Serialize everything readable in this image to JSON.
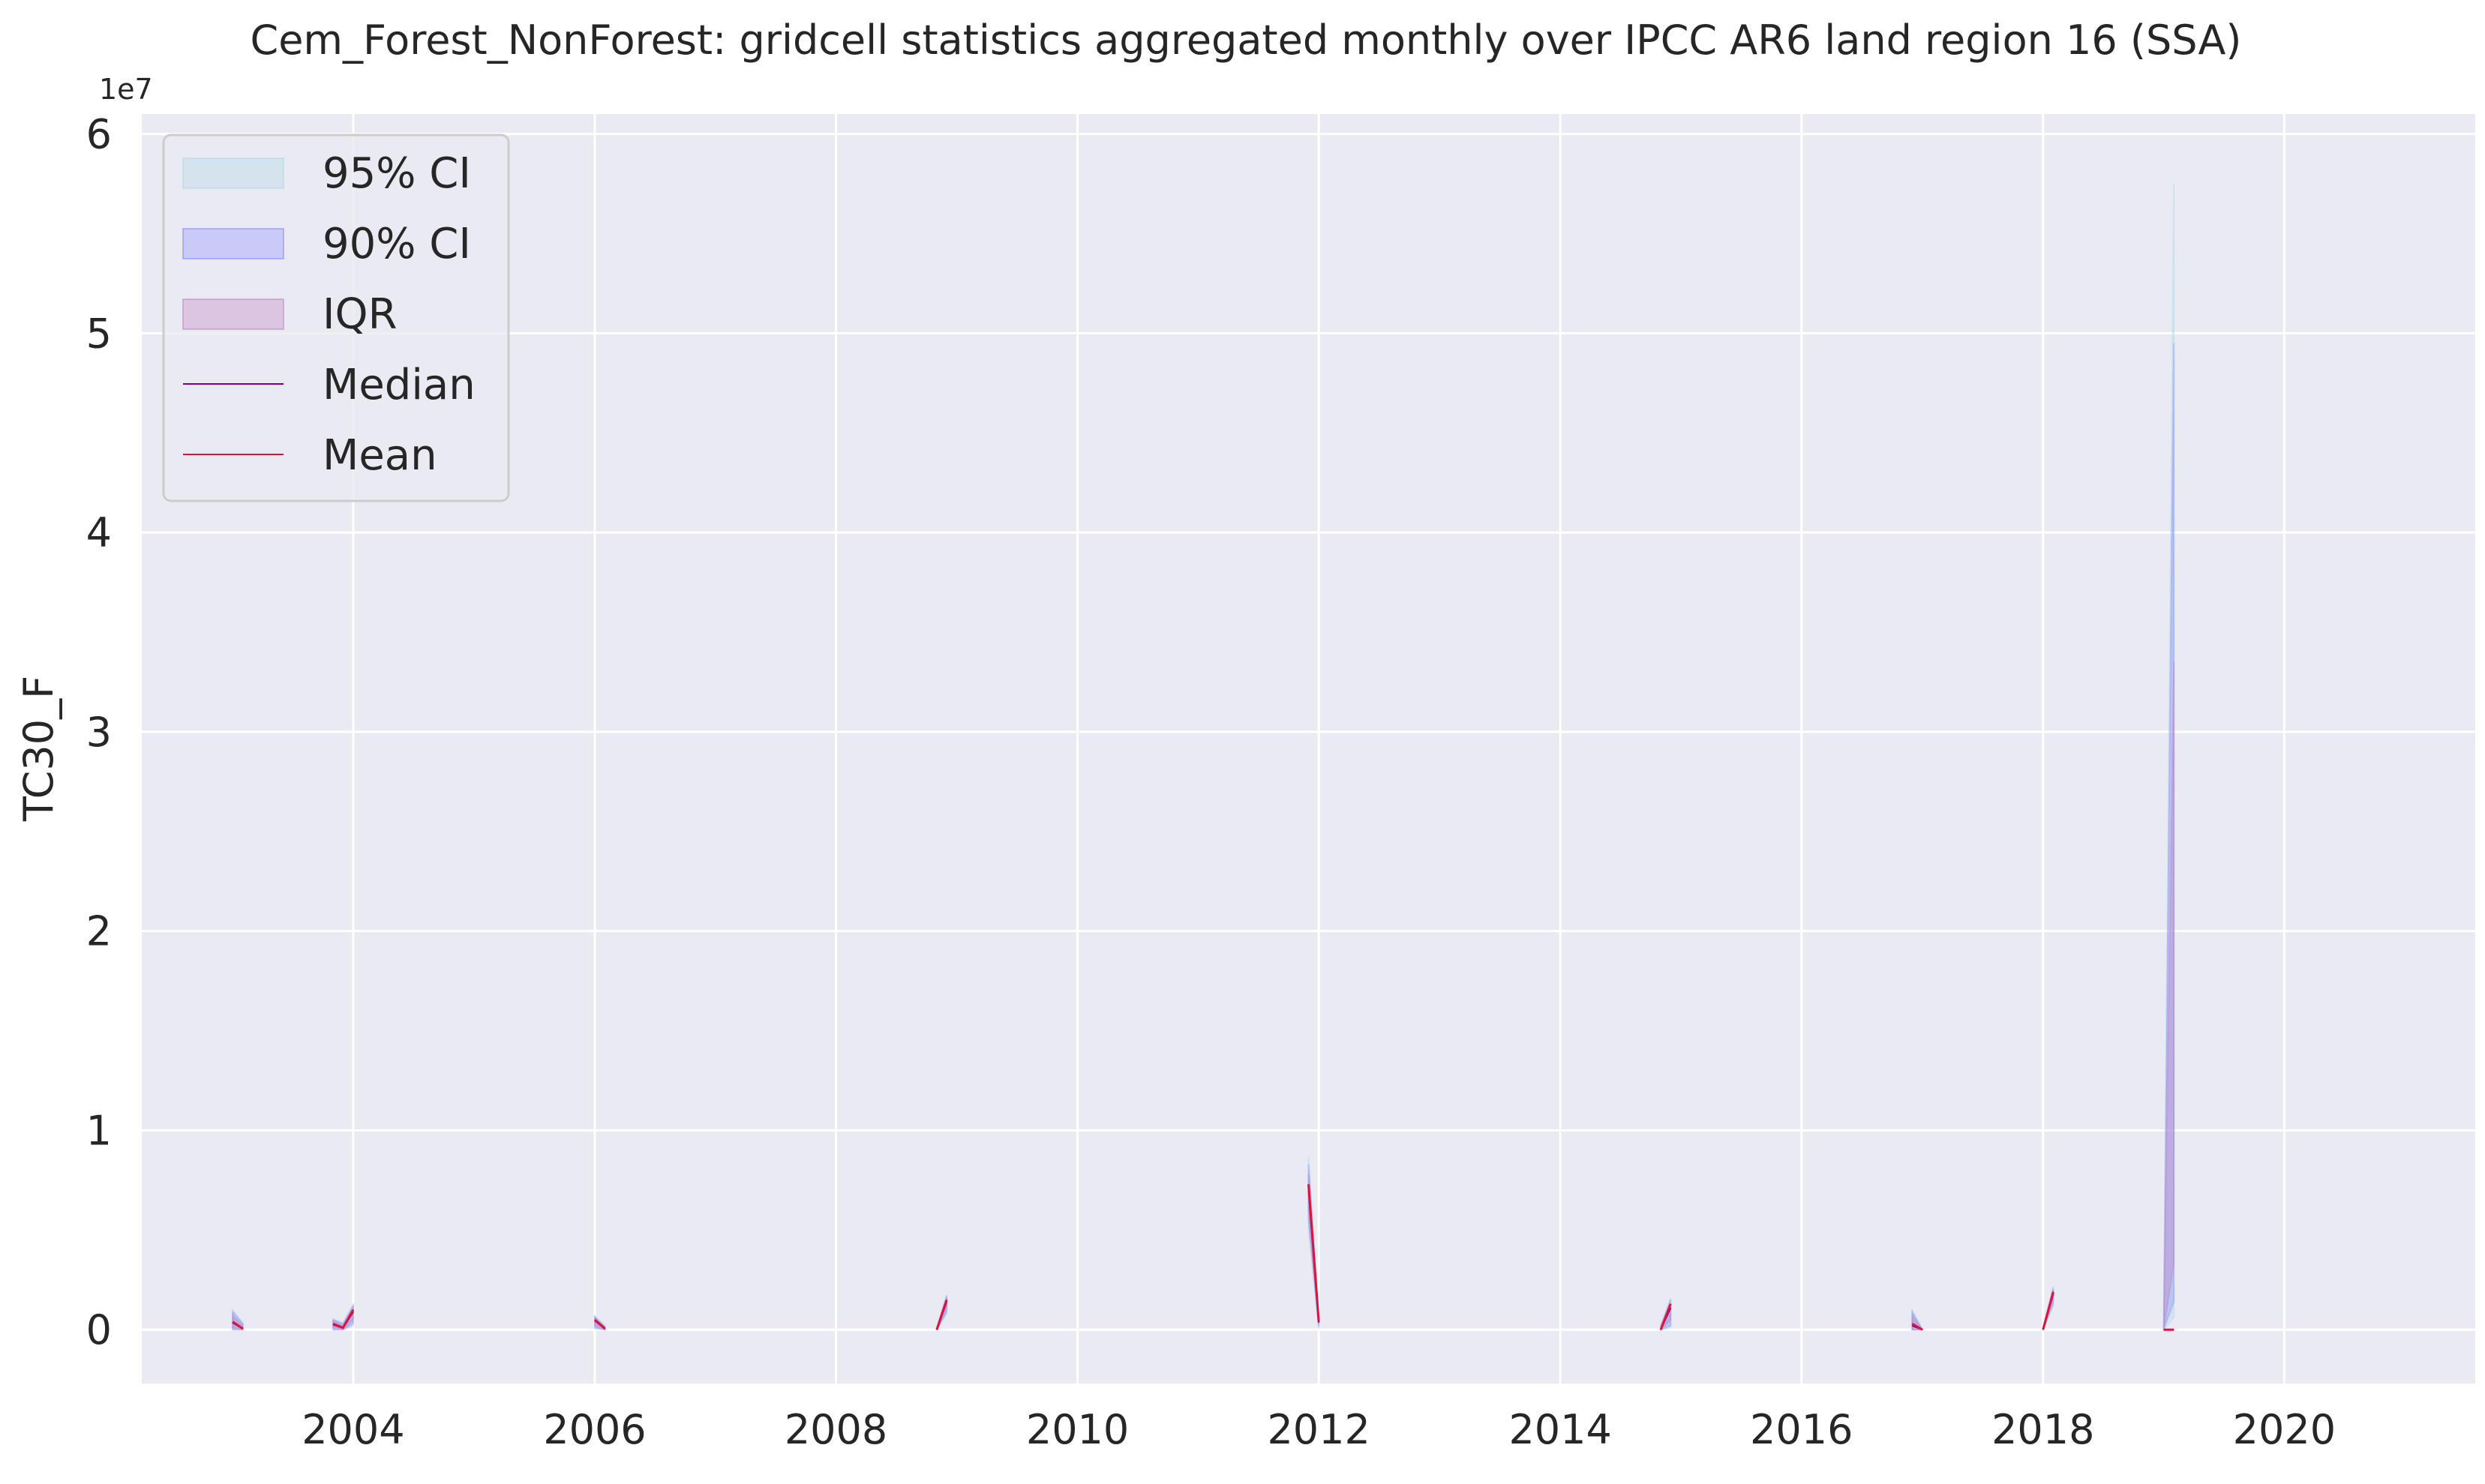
{
  "chart_data": {
    "type": "line",
    "title": "Cem_Forest_NonForest: gridcell statistics aggregated monthly over IPCC AR6 land region 16 (SSA)",
    "xlabel": "",
    "ylabel": "TC30_F",
    "y_offset_text": "1e7",
    "y_multiplier": 10000000,
    "xlim": [
      "2002-04-01",
      "2021-08-01"
    ],
    "ylim": [
      -2700000,
      61000000
    ],
    "x_ticks": [
      "2004-01-01",
      "2006-01-01",
      "2008-01-01",
      "2010-01-01",
      "2012-01-01",
      "2014-01-01",
      "2016-01-01",
      "2018-01-01",
      "2020-01-01"
    ],
    "x_tick_labels": [
      "2004",
      "2006",
      "2008",
      "2010",
      "2012",
      "2014",
      "2016",
      "2018",
      "2020"
    ],
    "y_ticks": [
      0,
      10000000,
      20000000,
      30000000,
      40000000,
      50000000,
      60000000
    ],
    "y_tick_labels": [
      "0",
      "1",
      "2",
      "3",
      "4",
      "5",
      "6"
    ],
    "grid": true,
    "legend_position": "top-left",
    "legend": [
      {
        "name": "95% CI",
        "kind": "band"
      },
      {
        "name": "90% CI",
        "kind": "band"
      },
      {
        "name": "IQR",
        "kind": "band"
      },
      {
        "name": "Median",
        "kind": "line"
      },
      {
        "name": "Mean",
        "kind": "line"
      }
    ],
    "colors": {
      "background": "#eaeaf2",
      "grid": "#ffffff",
      "ci95": "#add8e6",
      "ci90": "#8080ff",
      "iqr": "#c080c0",
      "median": "#800080",
      "mean": "#dc143c"
    },
    "segments": [
      {
        "x": [
          "2003-01-01",
          "2003-02-01"
        ],
        "mean": [
          400000,
          50000
        ],
        "median": [
          350000,
          40000
        ],
        "iqr_low": [
          100000,
          10000
        ],
        "iqr_high": [
          700000,
          200000
        ],
        "ci90_low": [
          0,
          0
        ],
        "ci90_high": [
          900000,
          300000
        ],
        "ci95_low": [
          0,
          0
        ],
        "ci95_high": [
          1000000,
          350000
        ]
      },
      {
        "x": [
          "2003-11-01",
          "2003-12-01",
          "2004-01-01"
        ],
        "mean": [
          300000,
          100000,
          1000000
        ],
        "median": [
          250000,
          80000,
          900000
        ],
        "iqr_low": [
          100000,
          20000,
          500000
        ],
        "iqr_high": [
          450000,
          200000,
          1100000
        ],
        "ci90_low": [
          0,
          0,
          300000
        ],
        "ci90_high": [
          500000,
          300000,
          1200000
        ],
        "ci95_low": [
          0,
          0,
          200000
        ],
        "ci95_high": [
          550000,
          350000,
          1300000
        ]
      },
      {
        "x": [
          "2006-01-01",
          "2006-02-01"
        ],
        "mean": [
          500000,
          50000
        ],
        "median": [
          450000,
          40000
        ],
        "iqr_low": [
          200000,
          10000
        ],
        "iqr_high": [
          600000,
          100000
        ],
        "ci90_low": [
          100000,
          0
        ],
        "ci90_high": [
          650000,
          150000
        ],
        "ci95_low": [
          50000,
          0
        ],
        "ci95_high": [
          700000,
          200000
        ]
      },
      {
        "x": [
          "2008-11-01",
          "2008-12-01"
        ],
        "mean": [
          0,
          1500000
        ],
        "median": [
          0,
          1400000
        ],
        "iqr_low": [
          0,
          1100000
        ],
        "iqr_high": [
          50000,
          1600000
        ],
        "ci90_low": [
          0,
          900000
        ],
        "ci90_high": [
          80000,
          1700000
        ],
        "ci95_low": [
          0,
          800000
        ],
        "ci95_high": [
          100000,
          1750000
        ]
      },
      {
        "x": [
          "2011-12-01",
          "2012-01-01"
        ],
        "mean": [
          7300000,
          400000
        ],
        "median": [
          7000000,
          350000
        ],
        "iqr_low": [
          6000000,
          200000
        ],
        "iqr_high": [
          7800000,
          500000
        ],
        "ci90_low": [
          5500000,
          100000
        ],
        "ci90_high": [
          8300000,
          600000
        ],
        "ci95_low": [
          5000000,
          50000
        ],
        "ci95_high": [
          8700000,
          700000
        ]
      },
      {
        "x": [
          "2014-11-01",
          "2014-12-01"
        ],
        "mean": [
          0,
          1300000
        ],
        "median": [
          0,
          1100000
        ],
        "iqr_low": [
          0,
          500000
        ],
        "iqr_high": [
          100000,
          1300000
        ],
        "ci90_low": [
          0,
          200000
        ],
        "ci90_high": [
          200000,
          1500000
        ],
        "ci95_low": [
          0,
          100000
        ],
        "ci95_high": [
          250000,
          1600000
        ]
      },
      {
        "x": [
          "2016-12-01",
          "2017-01-01"
        ],
        "mean": [
          300000,
          0
        ],
        "median": [
          200000,
          0
        ],
        "iqr_low": [
          0,
          0
        ],
        "iqr_high": [
          700000,
          0
        ],
        "ci90_low": [
          0,
          0
        ],
        "ci90_high": [
          900000,
          0
        ],
        "ci95_low": [
          0,
          0
        ],
        "ci95_high": [
          1000000,
          0
        ]
      },
      {
        "x": [
          "2018-01-01",
          "2018-02-01"
        ],
        "mean": [
          0,
          1900000
        ],
        "median": [
          0,
          1800000
        ],
        "iqr_low": [
          0,
          1500000
        ],
        "iqr_high": [
          50000,
          2000000
        ],
        "ci90_low": [
          0,
          1300000
        ],
        "ci90_high": [
          80000,
          2100000
        ],
        "ci95_low": [
          0,
          1200000
        ],
        "ci95_high": [
          100000,
          2200000
        ]
      },
      {
        "x": [
          "2019-01-01",
          "2019-02-01"
        ],
        "mean": [
          0,
          0
        ],
        "median": [
          0,
          0
        ],
        "iqr_low": [
          0,
          3300000
        ],
        "iqr_high": [
          0,
          33500000
        ],
        "ci90_low": [
          0,
          1400000
        ],
        "ci90_high": [
          0,
          49500000
        ],
        "ci95_low": [
          0,
          600000
        ],
        "ci95_high": [
          0,
          57500000
        ]
      }
    ]
  }
}
